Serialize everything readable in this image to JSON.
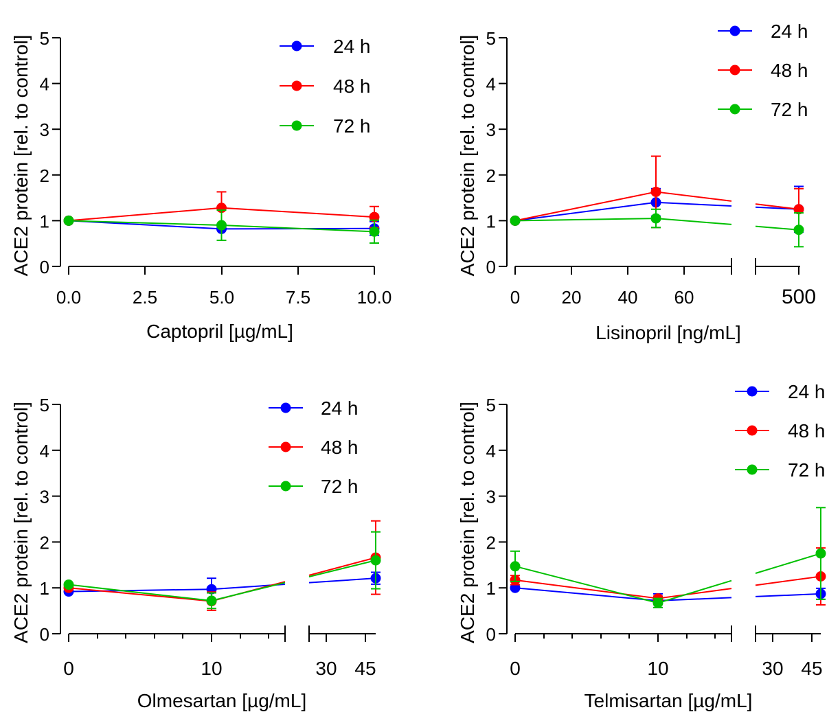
{
  "colors": {
    "24 h": "#0000ff",
    "48 h": "#ff0000",
    "72 h": "#00c000"
  },
  "chart_data": [
    {
      "type": "line",
      "xlabel": "Captopril [µg/mL]",
      "ylabel": "ACE2 protein [rel. to control]",
      "ylim": [
        0,
        5
      ],
      "yticks": [
        "0",
        "1",
        "2",
        "3",
        "4",
        "5"
      ],
      "xticks": [
        "0.0",
        "2.5",
        "5.0",
        "7.5",
        "10.0"
      ],
      "legend": [
        "24 h",
        "48 h",
        "72 h"
      ],
      "legend_position": "top-right",
      "x": [
        0,
        5,
        10
      ],
      "series": [
        {
          "name": "24 h",
          "values": [
            1.0,
            0.82,
            0.83
          ],
          "err": [
            0,
            0,
            0.15
          ]
        },
        {
          "name": "48 h",
          "values": [
            1.0,
            1.28,
            1.08
          ],
          "err": [
            0,
            0.35,
            0.23
          ]
        },
        {
          "name": "72 h",
          "values": [
            1.0,
            0.9,
            0.76
          ],
          "err": [
            0,
            0.33,
            0.25
          ]
        }
      ]
    },
    {
      "type": "line",
      "xlabel": "Lisinopril [ng/mL]",
      "ylabel": "ACE2 protein [rel. to control]",
      "ylim": [
        0,
        5
      ],
      "yticks": [
        "0",
        "1",
        "2",
        "3",
        "4",
        "5"
      ],
      "xticks": [
        "0",
        "20",
        "40",
        "60",
        "500"
      ],
      "axis_break": true,
      "legend": [
        "24 h",
        "48 h",
        "72 h"
      ],
      "legend_position": "top-right",
      "x": [
        0,
        50,
        500
      ],
      "series": [
        {
          "name": "24 h",
          "values": [
            1.0,
            1.4,
            1.25
          ],
          "err": [
            0,
            0.3,
            0.5
          ]
        },
        {
          "name": "48 h",
          "values": [
            1.0,
            1.63,
            1.25
          ],
          "err": [
            0,
            0.78,
            0.45
          ]
        },
        {
          "name": "72 h",
          "values": [
            1.0,
            1.05,
            0.8
          ],
          "err": [
            0,
            0.2,
            0.37
          ]
        }
      ]
    },
    {
      "type": "line",
      "xlabel": "Olmesartan [µg/mL]",
      "ylabel": "ACE2 protein [rel. to control]",
      "ylim": [
        0,
        5
      ],
      "yticks": [
        "0",
        "1",
        "2",
        "3",
        "4",
        "5"
      ],
      "xticks": [
        "0",
        "10",
        "30",
        "45"
      ],
      "axis_break": true,
      "legend": [
        "24 h",
        "48 h",
        "72 h"
      ],
      "legend_position": "top-right",
      "x": [
        0,
        10,
        50
      ],
      "series": [
        {
          "name": "24 h",
          "values": [
            0.92,
            0.97,
            1.21
          ],
          "err": [
            0,
            0.24,
            0.13
          ]
        },
        {
          "name": "48 h",
          "values": [
            1.0,
            0.71,
            1.66
          ],
          "err": [
            0,
            0.2,
            0.8
          ]
        },
        {
          "name": "72 h",
          "values": [
            1.07,
            0.72,
            1.6
          ],
          "err": [
            0,
            0.17,
            0.62
          ]
        }
      ]
    },
    {
      "type": "line",
      "xlabel": "Telmisartan [µg/mL]",
      "ylabel": "ACE2 protein [rel. to control]",
      "ylim": [
        0,
        5
      ],
      "yticks": [
        "0",
        "1",
        "2",
        "3",
        "4",
        "5"
      ],
      "xticks": [
        "0",
        "10",
        "30",
        "45"
      ],
      "axis_break": true,
      "legend": [
        "24 h",
        "48 h",
        "72 h"
      ],
      "legend_position": "top-right",
      "x": [
        0,
        10,
        50
      ],
      "series": [
        {
          "name": "24 h",
          "values": [
            1.0,
            0.72,
            0.87
          ],
          "err": [
            0,
            0.15,
            0.12
          ]
        },
        {
          "name": "48 h",
          "values": [
            1.17,
            0.77,
            1.25
          ],
          "err": [
            0.1,
            0.05,
            0.62
          ]
        },
        {
          "name": "72 h",
          "values": [
            1.47,
            0.67,
            1.75
          ],
          "err": [
            0.33,
            0.1,
            1.0
          ]
        }
      ]
    }
  ]
}
